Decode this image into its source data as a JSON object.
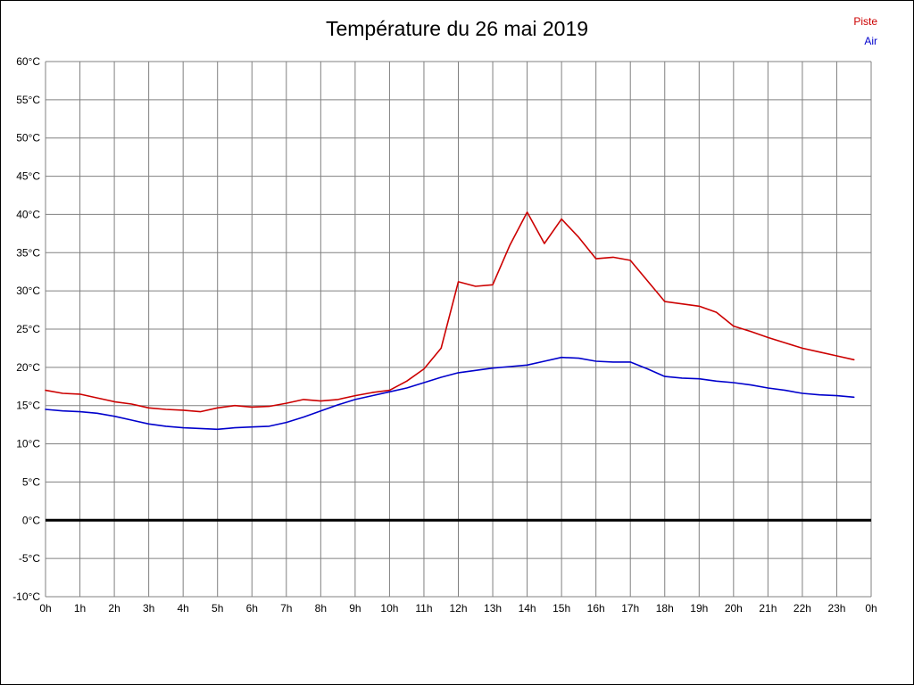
{
  "title": "Température du 26 mai 2019",
  "legend": [
    {
      "label": "Piste",
      "color": "#cc0000"
    },
    {
      "label": "Air",
      "color": "#0000cc"
    }
  ],
  "chart_data": {
    "type": "line",
    "title": "Température du 26 mai 2019",
    "xlabel": "",
    "ylabel": "",
    "ylim": [
      -10,
      60
    ],
    "y_tick_step": 5,
    "y_tick_suffix": "°C",
    "x_tick_labels": [
      "0h",
      "1h",
      "2h",
      "3h",
      "4h",
      "5h",
      "6h",
      "7h",
      "8h",
      "9h",
      "10h",
      "11h",
      "12h",
      "13h",
      "14h",
      "15h",
      "16h",
      "17h",
      "18h",
      "19h",
      "20h",
      "21h",
      "22h",
      "23h",
      "0h"
    ],
    "grid": true,
    "legend_position": "top-right",
    "zero_line": true,
    "x": [
      0,
      0.5,
      1,
      1.5,
      2,
      2.5,
      3,
      3.5,
      4,
      4.5,
      5,
      5.5,
      6,
      6.5,
      7,
      7.5,
      8,
      8.5,
      9,
      9.5,
      10,
      10.5,
      11,
      11.5,
      12,
      12.5,
      13,
      13.5,
      14,
      14.5,
      15,
      15.5,
      16,
      16.5,
      17,
      17.5,
      18,
      18.5,
      19,
      19.5,
      20,
      20.5,
      21,
      21.5,
      22,
      22.5,
      23,
      23.5
    ],
    "series": [
      {
        "name": "Piste",
        "color": "#cc0000",
        "values": [
          17.0,
          16.6,
          16.5,
          16.0,
          15.5,
          15.2,
          14.7,
          14.5,
          14.4,
          14.2,
          14.7,
          15.0,
          14.8,
          14.9,
          15.3,
          15.8,
          15.6,
          15.8,
          16.3,
          16.7,
          17.0,
          18.2,
          19.8,
          22.5,
          31.2,
          30.6,
          30.8,
          36.0,
          40.3,
          36.2,
          39.4,
          37.0,
          34.2,
          34.4,
          34.0,
          31.3,
          28.6,
          28.3,
          28.0,
          27.2,
          25.4,
          24.7,
          23.9,
          23.2,
          22.5,
          22.0,
          21.5,
          21.0
        ]
      },
      {
        "name": "Air",
        "color": "#0000cc",
        "values": [
          14.5,
          14.3,
          14.2,
          14.0,
          13.6,
          13.1,
          12.6,
          12.3,
          12.1,
          12.0,
          11.9,
          12.1,
          12.2,
          12.3,
          12.8,
          13.5,
          14.3,
          15.1,
          15.8,
          16.3,
          16.8,
          17.3,
          18.0,
          18.7,
          19.3,
          19.6,
          19.9,
          20.1,
          20.3,
          20.8,
          21.3,
          21.2,
          20.8,
          20.7,
          20.7,
          19.8,
          18.8,
          18.6,
          18.5,
          18.2,
          18.0,
          17.7,
          17.3,
          17.0,
          16.6,
          16.4,
          16.3,
          16.1
        ]
      }
    ]
  }
}
